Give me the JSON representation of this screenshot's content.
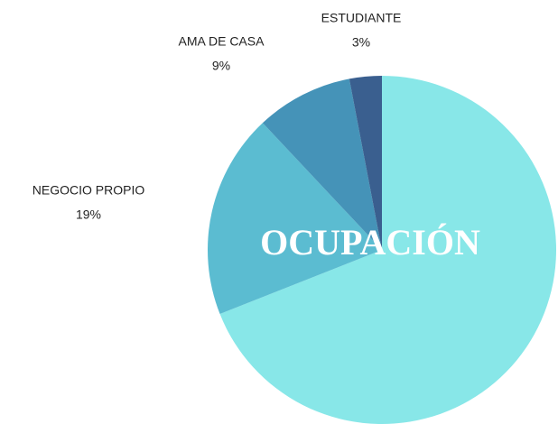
{
  "chart_data": {
    "type": "pie",
    "title": "OCUPACIÓN",
    "categories": [
      null,
      "NEGOCIO PROPIO",
      "AMA DE CASA",
      "ESTUDIANTE"
    ],
    "values": [
      69,
      19,
      9,
      3
    ],
    "value_labels": [
      null,
      "19%",
      "9%",
      "3%"
    ],
    "colors": [
      "#88e7e8",
      "#5bbcd1",
      "#4593b8",
      "#3a5f8f"
    ]
  }
}
